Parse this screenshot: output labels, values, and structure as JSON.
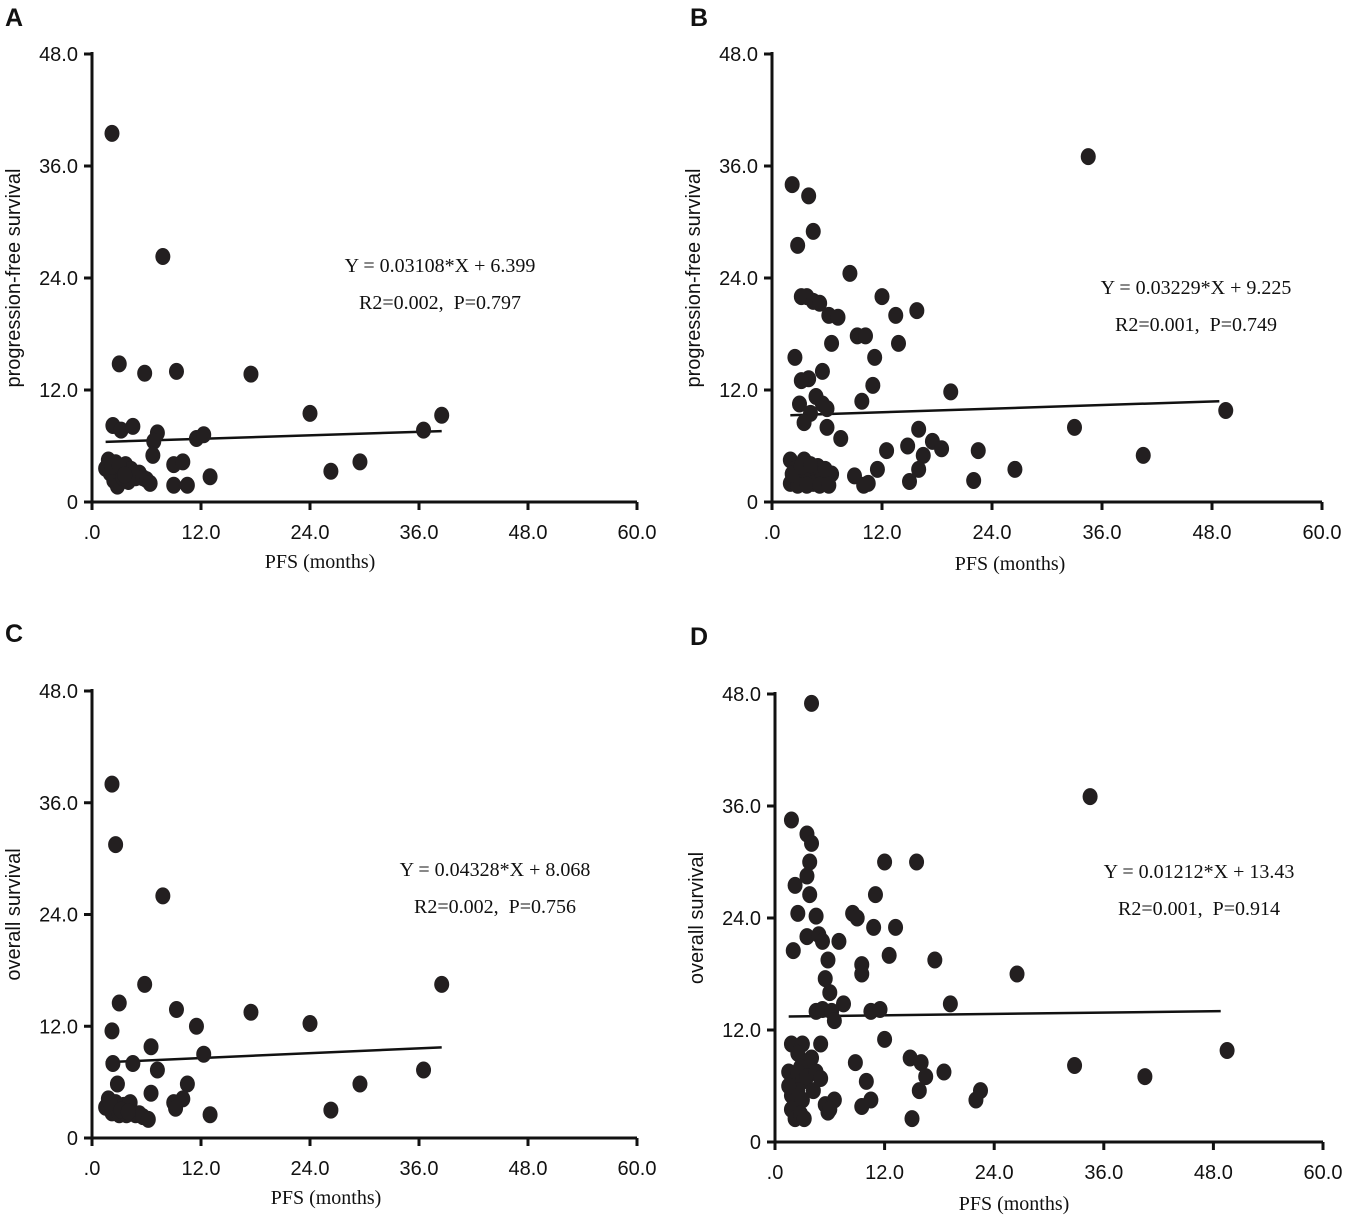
{
  "chart_data": [
    {
      "panel": "A",
      "type": "scatter",
      "xlabel": "PFS (months)",
      "ylabel": "progression-free survival",
      "xlim": [
        0,
        60
      ],
      "ylim": [
        0,
        48
      ],
      "xticks": [
        ".0",
        "12.0",
        "24.0",
        "36.0",
        "48.0",
        "60.0"
      ],
      "yticks": [
        "0",
        "12.0",
        "24.0",
        "36.0",
        "48.0"
      ],
      "equation": "Y = 0.03108*X + 6.399",
      "stats": "R2=0.002,  P=0.797",
      "fit": {
        "slope": 0.03108,
        "intercept": 6.399,
        "x_range": [
          1.5,
          38.5
        ]
      },
      "points": [
        [
          2.2,
          39.5
        ],
        [
          7.8,
          26.3
        ],
        [
          3.0,
          14.8
        ],
        [
          5.8,
          13.8
        ],
        [
          9.3,
          14.0
        ],
        [
          17.5,
          13.7
        ],
        [
          24.0,
          9.5
        ],
        [
          38.5,
          9.3
        ],
        [
          36.5,
          7.7
        ],
        [
          2.3,
          8.2
        ],
        [
          3.2,
          7.7
        ],
        [
          4.5,
          8.1
        ],
        [
          7.2,
          7.4
        ],
        [
          11.5,
          6.8
        ],
        [
          12.3,
          7.2
        ],
        [
          6.8,
          6.5
        ],
        [
          6.7,
          5.0
        ],
        [
          9.0,
          4.0
        ],
        [
          10.0,
          4.3
        ],
        [
          29.5,
          4.3
        ],
        [
          26.3,
          3.3
        ],
        [
          13.0,
          2.7
        ],
        [
          10.5,
          1.8
        ],
        [
          9.0,
          1.8
        ],
        [
          1.5,
          3.6
        ],
        [
          1.8,
          4.5
        ],
        [
          2.0,
          3.1
        ],
        [
          2.4,
          2.3
        ],
        [
          2.6,
          4.2
        ],
        [
          2.8,
          1.7
        ],
        [
          3.1,
          3.3
        ],
        [
          3.4,
          2.6
        ],
        [
          3.7,
          4.0
        ],
        [
          4.0,
          2.2
        ],
        [
          4.3,
          3.5
        ],
        [
          4.8,
          2.6
        ],
        [
          5.2,
          3.1
        ],
        [
          5.6,
          2.6
        ],
        [
          6.0,
          2.4
        ],
        [
          6.4,
          2.0
        ],
        [
          2.2,
          3.8
        ],
        [
          3.0,
          3.9
        ],
        [
          3.6,
          2.9
        ]
      ]
    },
    {
      "panel": "B",
      "type": "scatter",
      "xlabel": "PFS (months)",
      "ylabel": "progression-free survival",
      "xlim": [
        0,
        60
      ],
      "ylim": [
        0,
        48
      ],
      "xticks": [
        ".0",
        "12.0",
        "24.0",
        "36.0",
        "48.0",
        "60.0"
      ],
      "yticks": [
        "0",
        "12.0",
        "24.0",
        "36.0",
        "48.0"
      ],
      "equation": "Y = 0.03229*X + 9.225",
      "stats": "R2=0.001,  P=0.749",
      "fit": {
        "slope": 0.03229,
        "intercept": 9.225,
        "x_range": [
          2.0,
          48.8
        ]
      },
      "points": [
        [
          34.5,
          37.0
        ],
        [
          2.2,
          34.0
        ],
        [
          4.0,
          32.8
        ],
        [
          4.5,
          29.0
        ],
        [
          2.8,
          27.5
        ],
        [
          8.5,
          24.5
        ],
        [
          3.2,
          22.0
        ],
        [
          3.8,
          22.0
        ],
        [
          4.5,
          21.5
        ],
        [
          5.2,
          21.3
        ],
        [
          6.2,
          20.0
        ],
        [
          7.2,
          19.8
        ],
        [
          12.0,
          22.0
        ],
        [
          13.5,
          20.0
        ],
        [
          15.8,
          20.5
        ],
        [
          9.3,
          17.8
        ],
        [
          10.2,
          17.8
        ],
        [
          6.5,
          17.0
        ],
        [
          11.2,
          15.5
        ],
        [
          13.8,
          17.0
        ],
        [
          2.5,
          15.5
        ],
        [
          5.5,
          14.0
        ],
        [
          4.0,
          13.2
        ],
        [
          3.2,
          13.0
        ],
        [
          11.0,
          12.5
        ],
        [
          19.5,
          11.8
        ],
        [
          4.8,
          11.3
        ],
        [
          5.5,
          10.5
        ],
        [
          3.0,
          10.5
        ],
        [
          6.0,
          10.0
        ],
        [
          9.8,
          10.8
        ],
        [
          4.2,
          9.5
        ],
        [
          3.5,
          8.5
        ],
        [
          6.0,
          8.0
        ],
        [
          7.5,
          6.8
        ],
        [
          16.0,
          7.8
        ],
        [
          14.8,
          6.0
        ],
        [
          12.5,
          5.5
        ],
        [
          17.5,
          6.5
        ],
        [
          18.5,
          5.7
        ],
        [
          16.5,
          5.0
        ],
        [
          22.5,
          5.5
        ],
        [
          33.0,
          8.0
        ],
        [
          40.5,
          5.0
        ],
        [
          49.5,
          9.8
        ],
        [
          26.5,
          3.5
        ],
        [
          22.0,
          2.3
        ],
        [
          15.0,
          2.2
        ],
        [
          16.0,
          3.5
        ],
        [
          11.5,
          3.5
        ],
        [
          10.5,
          2.0
        ],
        [
          9.0,
          2.8
        ],
        [
          10.0,
          1.8
        ],
        [
          2.0,
          4.5
        ],
        [
          2.5,
          3.5
        ],
        [
          3.0,
          2.5
        ],
        [
          3.5,
          4.5
        ],
        [
          4.0,
          3.0
        ],
        [
          4.5,
          2.0
        ],
        [
          5.0,
          3.8
        ],
        [
          5.5,
          2.8
        ],
        [
          6.0,
          2.2
        ],
        [
          2.0,
          2.0
        ],
        [
          2.8,
          1.8
        ],
        [
          3.8,
          1.8
        ],
        [
          6.5,
          3.0
        ],
        [
          2.2,
          3.0
        ],
        [
          3.2,
          3.8
        ],
        [
          4.2,
          4.0
        ],
        [
          5.2,
          1.8
        ],
        [
          5.8,
          3.5
        ],
        [
          6.2,
          1.8
        ]
      ]
    },
    {
      "panel": "C",
      "type": "scatter",
      "xlabel": "PFS (months)",
      "ylabel": "overall survival",
      "xlim": [
        0,
        60
      ],
      "ylim": [
        0,
        48
      ],
      "xticks": [
        ".0",
        "12.0",
        "24.0",
        "36.0",
        "48.0",
        "60.0"
      ],
      "yticks": [
        "0",
        "12.0",
        "24.0",
        "36.0",
        "48.0"
      ],
      "equation": "Y = 0.04328*X + 8.068",
      "stats": "R2=0.002,  P=0.756",
      "fit": {
        "slope": 0.04328,
        "intercept": 8.068,
        "x_range": [
          1.5,
          38.5
        ]
      },
      "points": [
        [
          2.2,
          38.0
        ],
        [
          2.6,
          31.5
        ],
        [
          7.8,
          26.0
        ],
        [
          5.8,
          16.5
        ],
        [
          3.0,
          14.5
        ],
        [
          9.3,
          13.8
        ],
        [
          17.5,
          13.5
        ],
        [
          24.0,
          12.3
        ],
        [
          38.5,
          16.5
        ],
        [
          2.2,
          11.5
        ],
        [
          11.5,
          12.0
        ],
        [
          6.5,
          9.8
        ],
        [
          12.3,
          9.0
        ],
        [
          2.3,
          8.0
        ],
        [
          4.5,
          8.0
        ],
        [
          7.2,
          7.3
        ],
        [
          36.5,
          7.3
        ],
        [
          10.5,
          5.8
        ],
        [
          29.5,
          5.8
        ],
        [
          2.8,
          5.8
        ],
        [
          6.5,
          4.8
        ],
        [
          10.0,
          4.2
        ],
        [
          9.0,
          3.8
        ],
        [
          26.3,
          3.0
        ],
        [
          13.0,
          2.5
        ],
        [
          1.5,
          3.3
        ],
        [
          1.8,
          4.2
        ],
        [
          2.2,
          2.7
        ],
        [
          2.6,
          3.8
        ],
        [
          3.0,
          2.5
        ],
        [
          3.5,
          3.5
        ],
        [
          3.8,
          2.5
        ],
        [
          4.2,
          3.8
        ],
        [
          4.8,
          2.5
        ],
        [
          5.2,
          2.6
        ],
        [
          5.6,
          2.3
        ],
        [
          6.2,
          2.0
        ],
        [
          9.2,
          3.2
        ],
        [
          2.0,
          3.8
        ],
        [
          3.2,
          3.0
        ],
        [
          4.0,
          2.8
        ]
      ]
    },
    {
      "panel": "D",
      "type": "scatter",
      "xlabel": "PFS (months)",
      "ylabel": "overall survival",
      "xlim": [
        0,
        60
      ],
      "ylim": [
        0,
        48
      ],
      "xticks": [
        ".0",
        "12.0",
        "24.0",
        "36.0",
        "48.0",
        "60.0"
      ],
      "yticks": [
        "0",
        "12.0",
        "24.0",
        "36.0",
        "48.0"
      ],
      "equation": "Y = 0.01212*X + 13.43",
      "stats": "R2=0.001,  P=0.914",
      "fit": {
        "slope": 0.01212,
        "intercept": 13.43,
        "x_range": [
          1.5,
          48.8
        ]
      },
      "points": [
        [
          4.0,
          47.0
        ],
        [
          34.5,
          37.0
        ],
        [
          1.8,
          34.5
        ],
        [
          3.5,
          33.0
        ],
        [
          4.0,
          32.0
        ],
        [
          3.8,
          30.0
        ],
        [
          12.0,
          30.0
        ],
        [
          15.5,
          30.0
        ],
        [
          3.5,
          28.5
        ],
        [
          2.2,
          27.5
        ],
        [
          3.8,
          26.5
        ],
        [
          11.0,
          26.5
        ],
        [
          2.5,
          24.5
        ],
        [
          4.5,
          24.2
        ],
        [
          8.5,
          24.5
        ],
        [
          9.0,
          24.0
        ],
        [
          10.8,
          23.0
        ],
        [
          13.2,
          23.0
        ],
        [
          3.5,
          22.0
        ],
        [
          4.8,
          22.2
        ],
        [
          5.2,
          21.5
        ],
        [
          7.0,
          21.5
        ],
        [
          2.0,
          20.5
        ],
        [
          12.5,
          20.0
        ],
        [
          17.5,
          19.5
        ],
        [
          26.5,
          18.0
        ],
        [
          5.8,
          19.5
        ],
        [
          9.5,
          19.0
        ],
        [
          5.5,
          17.5
        ],
        [
          9.5,
          18.0
        ],
        [
          6.0,
          16.0
        ],
        [
          19.2,
          14.8
        ],
        [
          7.5,
          14.8
        ],
        [
          4.5,
          14.0
        ],
        [
          5.2,
          14.2
        ],
        [
          6.2,
          14.0
        ],
        [
          10.5,
          14.0
        ],
        [
          11.5,
          14.2
        ],
        [
          6.5,
          13.0
        ],
        [
          12.0,
          11.0
        ],
        [
          1.8,
          10.5
        ],
        [
          3.0,
          10.5
        ],
        [
          2.5,
          9.5
        ],
        [
          4.0,
          9.0
        ],
        [
          5.0,
          10.5
        ],
        [
          3.5,
          8.5
        ],
        [
          2.8,
          8.0
        ],
        [
          14.8,
          9.0
        ],
        [
          16.0,
          8.5
        ],
        [
          8.8,
          8.5
        ],
        [
          16.5,
          7.0
        ],
        [
          32.8,
          8.2
        ],
        [
          40.5,
          7.0
        ],
        [
          49.5,
          9.8
        ],
        [
          1.5,
          7.5
        ],
        [
          2.0,
          6.5
        ],
        [
          2.5,
          7.5
        ],
        [
          3.0,
          6.5
        ],
        [
          3.5,
          7.0
        ],
        [
          4.5,
          7.5
        ],
        [
          5.0,
          6.8
        ],
        [
          10.0,
          6.5
        ],
        [
          18.5,
          7.5
        ],
        [
          15.8,
          5.5
        ],
        [
          22.5,
          5.5
        ],
        [
          22.0,
          4.5
        ],
        [
          1.8,
          5.0
        ],
        [
          2.5,
          5.5
        ],
        [
          3.0,
          4.5
        ],
        [
          5.5,
          4.0
        ],
        [
          6.5,
          4.5
        ],
        [
          10.5,
          4.5
        ],
        [
          9.5,
          3.8
        ],
        [
          1.8,
          3.5
        ],
        [
          2.2,
          2.5
        ],
        [
          2.8,
          3.0
        ],
        [
          3.2,
          2.5
        ],
        [
          5.8,
          3.2
        ],
        [
          6.0,
          3.5
        ],
        [
          15.0,
          2.5
        ],
        [
          1.5,
          6.0
        ],
        [
          4.2,
          5.5
        ]
      ]
    }
  ]
}
